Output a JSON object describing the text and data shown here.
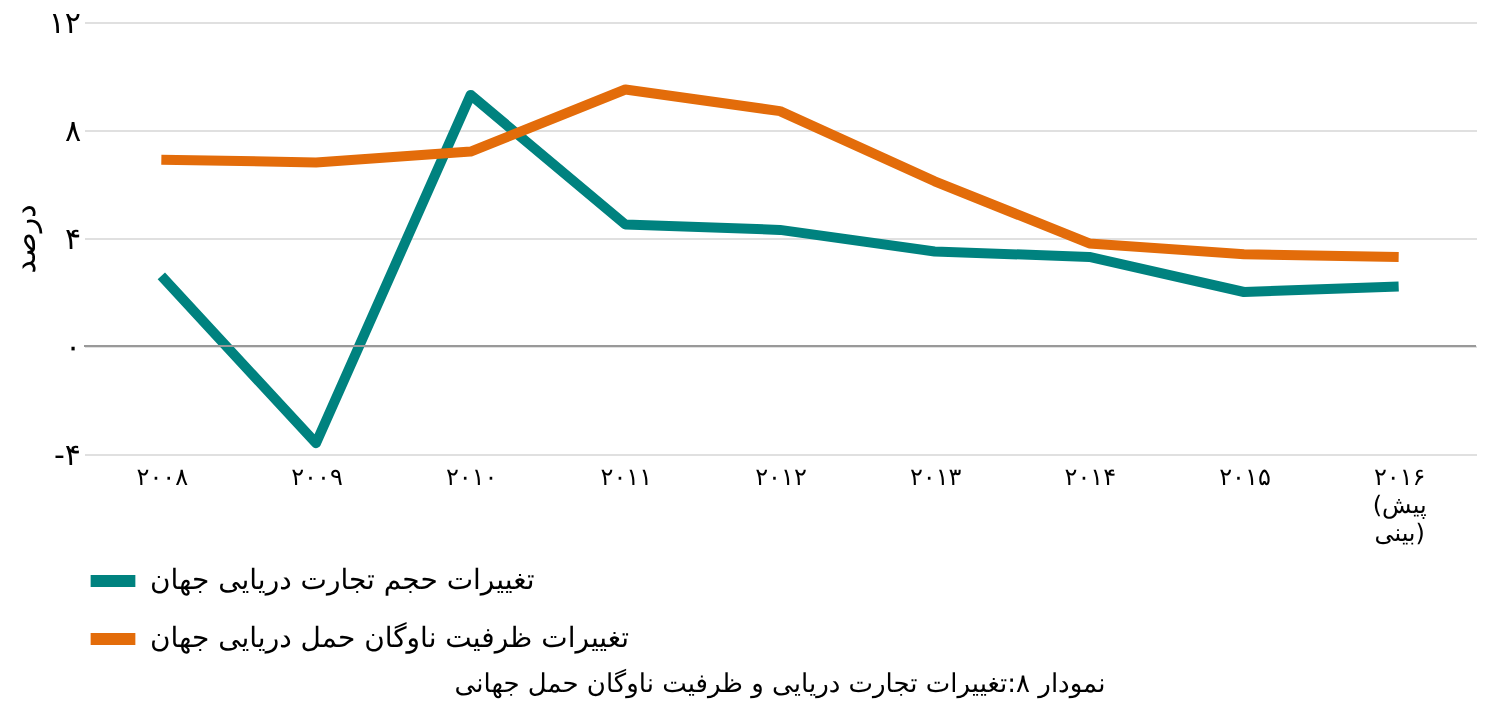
{
  "chart_data": {
    "type": "line",
    "ylabel": "درصد",
    "categories": [
      "۲۰۰۸",
      "۲۰۰۹",
      "۲۰۱۰",
      "۲۰۱۱",
      "۲۰۱۲",
      "۲۰۱۳",
      "۲۰۱۴",
      "۲۰۱۵",
      "۲۰۱۶\n(پیش\nبینی)"
    ],
    "series": [
      {
        "name": "تغییرات حجم تجارت دریایی جهان",
        "color": "#00827f",
        "values": [
          2.6,
          -3.6,
          9.3,
          4.5,
          4.3,
          3.5,
          3.3,
          2.0,
          2.2
        ]
      },
      {
        "name": "تغییرات ظرفیت ناوگان حمل دریایی جهان",
        "color": "#e36c0a",
        "values": [
          6.9,
          6.8,
          7.2,
          9.5,
          8.7,
          6.1,
          3.8,
          3.4,
          3.3
        ]
      }
    ],
    "ylim": [
      -4,
      12
    ],
    "yticks": [
      {
        "value": -4,
        "label": "-۴"
      },
      {
        "value": 0,
        "label": "۰"
      },
      {
        "value": 4,
        "label": "۴"
      },
      {
        "value": 8,
        "label": "۸"
      },
      {
        "value": 12,
        "label": "۱۲"
      }
    ],
    "grid": "y",
    "legend": "bottom",
    "marker": "none",
    "line_style": "solid",
    "annotations": [
      "نمودار ۸:تغییرات تجارت دریایی و ظرفیت ناوگان حمل جهانی"
    ]
  }
}
